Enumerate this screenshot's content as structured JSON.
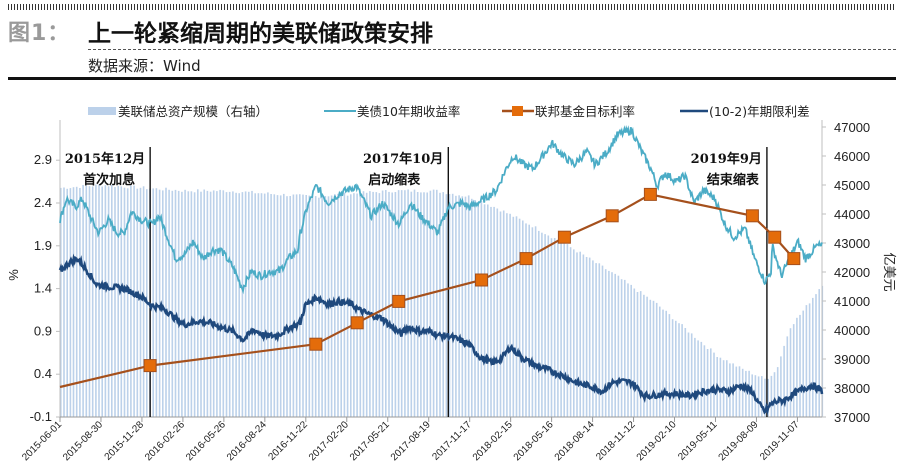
{
  "header": {
    "figure_label": "图1：",
    "title": "上一轮紧缩周期的美联储政策安排",
    "source": "数据来源：Wind"
  },
  "colors": {
    "balance_sheet": "#bcd1ea",
    "treasury_10y": "#4bacc6",
    "fed_funds_line": "#a5501c",
    "fed_funds_marker": "#e46c0a",
    "spread": "#1f497d",
    "annotation_line": "#000000"
  },
  "chart_data": {
    "type": "line",
    "title": "上一轮紧缩周期的美联储政策安排",
    "ylabel_left": "%",
    "ylabel_right": "亿美元",
    "ylim_left": [
      -0.1,
      3.4
    ],
    "ylim_right": [
      37000,
      47000
    ],
    "yticks_left": [
      "-0.1",
      "0.4",
      "0.9",
      "1.4",
      "1.9",
      "2.4",
      "2.9"
    ],
    "yticks_right": [
      "37000",
      "38000",
      "39000",
      "40000",
      "41000",
      "42000",
      "43000",
      "44000",
      "45000",
      "46000",
      "47000"
    ],
    "x_range": [
      "2015-06-01",
      "2019-12-31"
    ],
    "xticks": [
      "2015-06-01",
      "2015-08-30",
      "2015-11-28",
      "2016-02-26",
      "2016-05-26",
      "2016-08-24",
      "2016-11-22",
      "2017-02-20",
      "2017-05-21",
      "2017-08-19",
      "2017-11-17",
      "2018-02-15",
      "2018-05-16",
      "2018-08-14",
      "2018-11-12",
      "2019-02-10",
      "2019-05-11",
      "2019-08-09",
      "2019-11-07"
    ],
    "legend": [
      "美联储总资产规模（右轴）",
      "美债10年期收益率",
      "联邦基金目标利率",
      "(10-2)年期限利差"
    ],
    "legend_position": "top",
    "series": [
      {
        "name": "美联储总资产规模（右轴）",
        "type": "bar",
        "axis": "right",
        "points": [
          [
            "2015-06-01",
            44900
          ],
          [
            "2015-09-01",
            45000
          ],
          [
            "2015-12-01",
            44900
          ],
          [
            "2016-03-01",
            44800
          ],
          [
            "2016-06-01",
            44800
          ],
          [
            "2016-09-01",
            44700
          ],
          [
            "2016-12-01",
            44600
          ],
          [
            "2017-03-01",
            44700
          ],
          [
            "2017-06-01",
            44800
          ],
          [
            "2017-09-01",
            44800
          ],
          [
            "2017-11-15",
            44600
          ],
          [
            "2018-01-15",
            44200
          ],
          [
            "2018-04-01",
            43600
          ],
          [
            "2018-07-01",
            42800
          ],
          [
            "2018-10-01",
            41900
          ],
          [
            "2018-12-31",
            40900
          ],
          [
            "2019-03-15",
            39900
          ],
          [
            "2019-05-15",
            39100
          ],
          [
            "2019-07-01",
            38700
          ],
          [
            "2019-08-28",
            38300
          ],
          [
            "2019-09-20",
            38600
          ],
          [
            "2019-10-20",
            40100
          ],
          [
            "2019-11-20",
            40700
          ],
          [
            "2019-12-31",
            41600
          ]
        ]
      },
      {
        "name": "美债10年期收益率",
        "type": "line",
        "axis": "left",
        "points": [
          [
            "2015-06-01",
            2.2
          ],
          [
            "2015-06-15",
            2.45
          ],
          [
            "2015-07-05",
            2.35
          ],
          [
            "2015-07-20",
            2.45
          ],
          [
            "2015-08-10",
            2.2
          ],
          [
            "2015-08-25",
            2.05
          ],
          [
            "2015-09-15",
            2.2
          ],
          [
            "2015-10-05",
            2.05
          ],
          [
            "2015-10-20",
            2.05
          ],
          [
            "2015-11-05",
            2.3
          ],
          [
            "2015-11-28",
            2.2
          ],
          [
            "2015-12-20",
            2.15
          ],
          [
            "2016-01-05",
            2.25
          ],
          [
            "2016-01-20",
            2.05
          ],
          [
            "2016-02-10",
            1.75
          ],
          [
            "2016-03-01",
            1.8
          ],
          [
            "2016-03-20",
            1.95
          ],
          [
            "2016-04-10",
            1.75
          ],
          [
            "2016-04-30",
            1.85
          ],
          [
            "2016-05-20",
            1.85
          ],
          [
            "2016-06-15",
            1.65
          ],
          [
            "2016-07-06",
            1.4
          ],
          [
            "2016-07-25",
            1.6
          ],
          [
            "2016-08-15",
            1.55
          ],
          [
            "2016-09-05",
            1.6
          ],
          [
            "2016-09-25",
            1.6
          ],
          [
            "2016-10-15",
            1.75
          ],
          [
            "2016-11-05",
            1.85
          ],
          [
            "2016-11-10",
            2.05
          ],
          [
            "2016-11-25",
            2.35
          ],
          [
            "2016-12-15",
            2.6
          ],
          [
            "2017-01-10",
            2.4
          ],
          [
            "2017-02-01",
            2.5
          ],
          [
            "2017-03-13",
            2.6
          ],
          [
            "2017-04-15",
            2.25
          ],
          [
            "2017-05-10",
            2.4
          ],
          [
            "2017-06-15",
            2.15
          ],
          [
            "2017-07-10",
            2.4
          ],
          [
            "2017-08-01",
            2.25
          ],
          [
            "2017-09-08",
            2.05
          ],
          [
            "2017-10-01",
            2.35
          ],
          [
            "2017-11-01",
            2.4
          ],
          [
            "2017-11-17",
            2.35
          ],
          [
            "2017-12-20",
            2.45
          ],
          [
            "2018-01-15",
            2.55
          ],
          [
            "2018-02-05",
            2.8
          ],
          [
            "2018-02-21",
            2.95
          ],
          [
            "2018-03-15",
            2.85
          ],
          [
            "2018-04-05",
            2.8
          ],
          [
            "2018-05-17",
            3.1
          ],
          [
            "2018-06-10",
            2.95
          ],
          [
            "2018-07-05",
            2.85
          ],
          [
            "2018-08-01",
            3.0
          ],
          [
            "2018-08-20",
            2.85
          ],
          [
            "2018-09-15",
            3.0
          ],
          [
            "2018-10-08",
            3.2
          ],
          [
            "2018-11-08",
            3.25
          ],
          [
            "2018-11-30",
            3.0
          ],
          [
            "2018-12-20",
            2.8
          ],
          [
            "2019-01-03",
            2.6
          ],
          [
            "2019-01-20",
            2.75
          ],
          [
            "2019-02-15",
            2.65
          ],
          [
            "2019-03-05",
            2.72
          ],
          [
            "2019-03-25",
            2.4
          ],
          [
            "2019-04-15",
            2.55
          ],
          [
            "2019-05-10",
            2.45
          ],
          [
            "2019-06-01",
            2.15
          ],
          [
            "2019-06-20",
            2.0
          ],
          [
            "2019-07-15",
            2.1
          ],
          [
            "2019-08-05",
            1.75
          ],
          [
            "2019-08-28",
            1.48
          ],
          [
            "2019-09-10",
            1.6
          ],
          [
            "2019-09-13",
            1.9
          ],
          [
            "2019-10-03",
            1.55
          ],
          [
            "2019-10-25",
            1.8
          ],
          [
            "2019-11-08",
            1.95
          ],
          [
            "2019-11-25",
            1.75
          ],
          [
            "2019-12-20",
            1.9
          ],
          [
            "2019-12-31",
            1.9
          ]
        ]
      },
      {
        "name": "联邦基金目标利率",
        "type": "line_markers",
        "axis": "left",
        "points": [
          [
            "2015-06-01",
            0.25
          ],
          [
            "2015-12-16",
            0.5
          ],
          [
            "2016-12-14",
            0.75
          ],
          [
            "2017-03-15",
            1.0
          ],
          [
            "2017-06-14",
            1.25
          ],
          [
            "2017-12-13",
            1.5
          ],
          [
            "2018-03-21",
            1.75
          ],
          [
            "2018-06-13",
            2.0
          ],
          [
            "2018-09-26",
            2.25
          ],
          [
            "2018-12-19",
            2.5
          ],
          [
            "2019-07-31",
            2.25
          ],
          [
            "2019-09-18",
            2.0
          ],
          [
            "2019-10-30",
            1.75
          ]
        ],
        "markers_from_index": 1
      },
      {
        "name": "(10-2)年期限利差",
        "type": "line",
        "axis": "left",
        "points": [
          [
            "2015-06-01",
            1.6
          ],
          [
            "2015-06-20",
            1.7
          ],
          [
            "2015-07-10",
            1.75
          ],
          [
            "2015-08-01",
            1.6
          ],
          [
            "2015-08-20",
            1.45
          ],
          [
            "2015-09-20",
            1.42
          ],
          [
            "2015-10-20",
            1.4
          ],
          [
            "2015-11-10",
            1.35
          ],
          [
            "2015-11-28",
            1.3
          ],
          [
            "2015-12-20",
            1.2
          ],
          [
            "2016-01-15",
            1.17
          ],
          [
            "2016-02-10",
            1.05
          ],
          [
            "2016-03-01",
            0.98
          ],
          [
            "2016-03-30",
            1.02
          ],
          [
            "2016-04-25",
            1.0
          ],
          [
            "2016-05-20",
            0.95
          ],
          [
            "2016-06-15",
            0.9
          ],
          [
            "2016-07-08",
            0.8
          ],
          [
            "2016-07-30",
            0.92
          ],
          [
            "2016-08-25",
            0.85
          ],
          [
            "2016-09-20",
            0.85
          ],
          [
            "2016-10-20",
            0.95
          ],
          [
            "2016-11-10",
            1.0
          ],
          [
            "2016-11-20",
            1.2
          ],
          [
            "2016-12-15",
            1.3
          ],
          [
            "2017-01-10",
            1.22
          ],
          [
            "2017-02-01",
            1.25
          ],
          [
            "2017-03-01",
            1.22
          ],
          [
            "2017-03-20",
            1.15
          ],
          [
            "2017-04-10",
            1.1
          ],
          [
            "2017-05-10",
            1.05
          ],
          [
            "2017-05-30",
            0.95
          ],
          [
            "2017-06-20",
            0.87
          ],
          [
            "2017-07-05",
            0.95
          ],
          [
            "2017-08-01",
            0.9
          ],
          [
            "2017-08-25",
            0.9
          ],
          [
            "2017-09-10",
            0.85
          ],
          [
            "2017-10-01",
            0.85
          ],
          [
            "2017-10-25",
            0.8
          ],
          [
            "2017-11-15",
            0.75
          ],
          [
            "2017-12-10",
            0.6
          ],
          [
            "2018-01-05",
            0.53
          ],
          [
            "2018-01-25",
            0.58
          ],
          [
            "2018-02-15",
            0.72
          ],
          [
            "2018-03-10",
            0.6
          ],
          [
            "2018-04-10",
            0.5
          ],
          [
            "2018-05-10",
            0.45
          ],
          [
            "2018-06-10",
            0.38
          ],
          [
            "2018-07-10",
            0.3
          ],
          [
            "2018-08-15",
            0.25
          ],
          [
            "2018-09-05",
            0.2
          ],
          [
            "2018-09-25",
            0.3
          ],
          [
            "2018-10-15",
            0.32
          ],
          [
            "2018-11-10",
            0.3
          ],
          [
            "2018-12-05",
            0.15
          ],
          [
            "2018-12-20",
            0.15
          ],
          [
            "2019-01-15",
            0.17
          ],
          [
            "2019-02-15",
            0.17
          ],
          [
            "2019-03-15",
            0.15
          ],
          [
            "2019-04-15",
            0.2
          ],
          [
            "2019-05-15",
            0.22
          ],
          [
            "2019-06-10",
            0.2
          ],
          [
            "2019-07-05",
            0.27
          ],
          [
            "2019-07-30",
            0.2
          ],
          [
            "2019-08-15",
            0.05
          ],
          [
            "2019-08-28",
            -0.04
          ],
          [
            "2019-09-10",
            0.05
          ],
          [
            "2019-09-20",
            0.08
          ],
          [
            "2019-10-10",
            0.1
          ],
          [
            "2019-10-30",
            0.17
          ],
          [
            "2019-11-20",
            0.23
          ],
          [
            "2019-12-10",
            0.27
          ],
          [
            "2019-12-31",
            0.2
          ]
        ]
      }
    ],
    "annotations": [
      {
        "date": "2015-12-16",
        "line1": "2015年12月",
        "line2": "首次加息"
      },
      {
        "date": "2017-10-01",
        "line1": "2017年10月",
        "line2": "启动缩表"
      },
      {
        "date": "2019-09-01",
        "line1": "2019年9月",
        "line2": "结束缩表"
      }
    ]
  }
}
